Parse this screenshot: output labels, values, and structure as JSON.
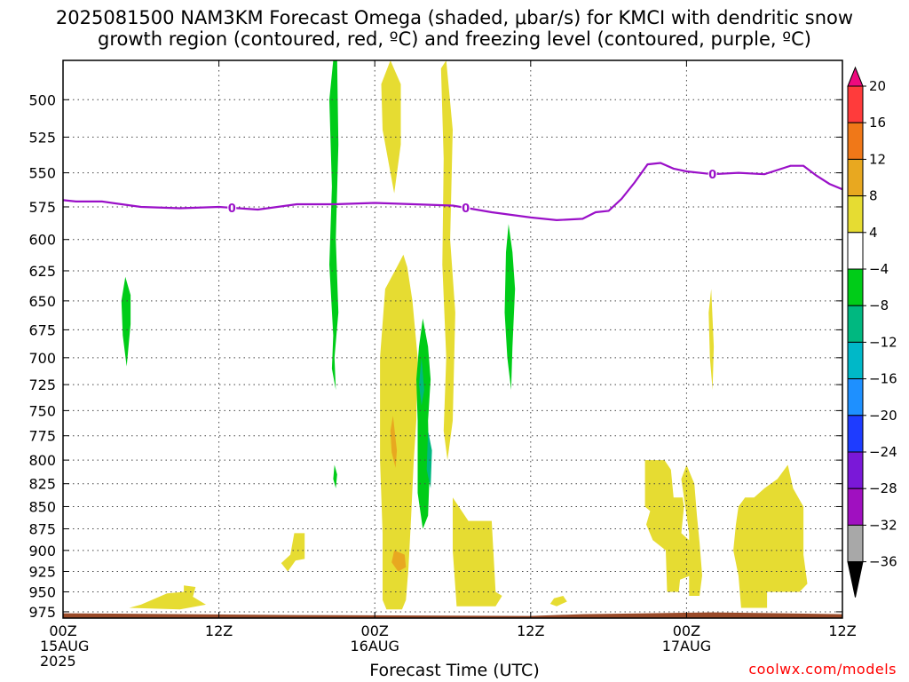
{
  "title_line1": "2025081500 NAM3KM Forecast Omega (shaded, μbar/s) for KMCI with dendritic snow",
  "title_line2": "growth region (contoured, red, ºC) and freezing level (contoured, purple, ºC)",
  "xlabel": "Forecast Time (UTC)",
  "credit": "coolwx.com/models",
  "chart_data": {
    "type": "heatmap",
    "title": "2025081500 NAM3KM Forecast Omega (shaded, μbar/s) for KMCI with dendritic snow growth region (contoured, red, ºC) and freezing level (contoured, purple, ºC)",
    "xlabel": "Forecast Time (UTC)",
    "ylabel": "",
    "x_range_hours": [
      0,
      60
    ],
    "y_range_hPa": [
      983,
      475
    ],
    "y_ticks": [
      500,
      525,
      550,
      575,
      600,
      625,
      650,
      675,
      700,
      725,
      750,
      775,
      800,
      825,
      850,
      875,
      900,
      925,
      950,
      975
    ],
    "x_ticks": [
      {
        "h": 0,
        "lines": [
          "00Z",
          "15AUG",
          "2025"
        ]
      },
      {
        "h": 12,
        "lines": [
          "12Z"
        ]
      },
      {
        "h": 24,
        "lines": [
          "00Z",
          "16AUG"
        ]
      },
      {
        "h": 36,
        "lines": [
          "12Z"
        ]
      },
      {
        "h": 48,
        "lines": [
          "00Z",
          "17AUG"
        ]
      },
      {
        "h": 60,
        "lines": [
          "12Z"
        ]
      }
    ],
    "grid": true,
    "colorbar": {
      "labels": [
        20,
        16,
        12,
        8,
        4,
        -4,
        -8,
        -12,
        -16,
        -20,
        -24,
        -28,
        -32,
        -36
      ],
      "colors": [
        "#ee0a7e",
        "#ff3b3b",
        "#f07818",
        "#e8a820",
        "#e6dc32",
        "#ffffff",
        "#00cc18",
        "#00b880",
        "#00b8c8",
        "#1e90ff",
        "#1e3cff",
        "#7a18d8",
        "#a010c0",
        "#a8a8a8",
        "#000000"
      ]
    },
    "freezing_level": {
      "label": "0",
      "color": "#9a10c8",
      "hours": [
        0,
        1,
        3,
        6,
        9,
        12,
        15,
        18,
        21,
        24,
        27,
        30,
        33,
        36,
        38,
        40,
        41,
        42,
        43,
        44,
        45,
        46,
        47,
        48,
        50,
        52,
        54,
        56,
        57,
        58,
        59,
        60
      ],
      "hPa": [
        570,
        571,
        571,
        575,
        576,
        575,
        577,
        573,
        573,
        572,
        573,
        574,
        579,
        583,
        585,
        584,
        579,
        578,
        569,
        557,
        544,
        543,
        547,
        549,
        551,
        550,
        551,
        545,
        545,
        552,
        558,
        562
      ],
      "labels_at_hours": [
        13,
        31,
        50
      ]
    },
    "omega_regions": [
      {
        "level": "4 to 8",
        "color": "#e6dc32",
        "poly_h_hPa": [
          [
            25.2,
            475
          ],
          [
            26,
            490
          ],
          [
            26,
            530
          ],
          [
            25.5,
            565
          ],
          [
            24.6,
            520
          ],
          [
            24.5,
            490
          ]
        ]
      },
      {
        "level": "4 to 8",
        "color": "#e6dc32",
        "poly_h_hPa": [
          [
            29.5,
            475
          ],
          [
            30,
            520
          ],
          [
            29.8,
            600
          ],
          [
            30.2,
            660
          ],
          [
            30,
            760
          ],
          [
            29.6,
            800
          ],
          [
            29.3,
            770
          ],
          [
            29.5,
            700
          ],
          [
            29.2,
            620
          ],
          [
            29.3,
            540
          ],
          [
            29.1,
            480
          ]
        ]
      },
      {
        "level": "4 to 8",
        "color": "#e6dc32",
        "poly_h_hPa": [
          [
            26.5,
            622
          ],
          [
            26.9,
            650
          ],
          [
            27.3,
            700
          ],
          [
            27.2,
            760
          ],
          [
            27.0,
            800
          ],
          [
            26.8,
            860
          ],
          [
            26.6,
            920
          ],
          [
            26.4,
            960
          ],
          [
            26.1,
            972
          ],
          [
            24.9,
            972
          ],
          [
            24.6,
            960
          ],
          [
            24.6,
            880
          ],
          [
            24.4,
            800
          ],
          [
            24.4,
            700
          ],
          [
            24.8,
            640
          ],
          [
            25.7,
            622
          ],
          [
            26.2,
            612
          ]
        ]
      },
      {
        "level": "4 to 8",
        "color": "#e6dc32",
        "poly_h_hPa": [
          [
            30.0,
            840
          ],
          [
            31.2,
            866
          ],
          [
            33.0,
            866
          ],
          [
            33.3,
            950
          ],
          [
            33.8,
            955
          ],
          [
            33.3,
            968
          ],
          [
            30.3,
            968
          ],
          [
            30.0,
            900
          ]
        ]
      },
      {
        "level": "4 to 8",
        "color": "#e6dc32",
        "poly_h_hPa": [
          [
            6.0,
            966
          ],
          [
            8.0,
            952
          ],
          [
            9.3,
            950
          ],
          [
            9.3,
            942
          ],
          [
            10.2,
            944
          ],
          [
            10.0,
            956
          ],
          [
            11.0,
            966
          ],
          [
            9.0,
            972
          ],
          [
            5.1,
            970
          ]
        ]
      },
      {
        "level": "4 to 8",
        "color": "#e6dc32",
        "poly_h_hPa": [
          [
            17.8,
            880
          ],
          [
            18.6,
            880
          ],
          [
            18.6,
            910
          ],
          [
            17.9,
            912
          ],
          [
            17.3,
            925
          ],
          [
            16.8,
            915
          ],
          [
            17.5,
            905
          ]
        ]
      },
      {
        "level": "4 to 8",
        "color": "#e6dc32",
        "poly_h_hPa": [
          [
            37.8,
            958
          ],
          [
            38.5,
            955
          ],
          [
            38.8,
            962
          ],
          [
            38.0,
            968
          ],
          [
            37.5,
            965
          ]
        ]
      },
      {
        "level": "4 to 8",
        "color": "#e6dc32",
        "poly_h_hPa": [
          [
            44.8,
            800
          ],
          [
            46.3,
            800
          ],
          [
            46.8,
            810
          ],
          [
            47.0,
            840
          ],
          [
            47.7,
            840
          ],
          [
            47.8,
            850
          ],
          [
            47.6,
            880
          ],
          [
            48.2,
            888
          ],
          [
            48.3,
            930
          ],
          [
            47.5,
            935
          ],
          [
            47.4,
            950
          ],
          [
            46.5,
            950
          ],
          [
            46.4,
            900
          ],
          [
            45.4,
            888
          ],
          [
            44.9,
            870
          ],
          [
            45.2,
            855
          ],
          [
            44.8,
            850
          ]
        ]
      },
      {
        "level": "4 to 8",
        "color": "#e6dc32",
        "poly_h_hPa": [
          [
            47.6,
            820
          ],
          [
            48.0,
            805
          ],
          [
            48.6,
            825
          ],
          [
            48.8,
            860
          ],
          [
            49.0,
            890
          ],
          [
            49.2,
            930
          ],
          [
            49.0,
            955
          ],
          [
            48.2,
            955
          ],
          [
            48.2,
            880
          ]
        ]
      },
      {
        "level": "4 to 8",
        "color": "#e6dc32",
        "poly_h_hPa": [
          [
            52.0,
            850
          ],
          [
            52.5,
            840
          ],
          [
            53.2,
            840
          ],
          [
            54.0,
            830
          ],
          [
            55.0,
            820
          ],
          [
            55.8,
            805
          ],
          [
            56.2,
            830
          ],
          [
            57.0,
            850
          ],
          [
            57.0,
            905
          ],
          [
            57.3,
            940
          ],
          [
            56.7,
            950
          ],
          [
            54.2,
            950
          ],
          [
            54.2,
            970
          ],
          [
            52.2,
            970
          ],
          [
            52.0,
            930
          ],
          [
            51.6,
            900
          ],
          [
            51.8,
            870
          ]
        ]
      },
      {
        "level": "4 to 8",
        "color": "#e6dc32",
        "poly_h_hPa": [
          [
            49.9,
            640
          ],
          [
            50.1,
            690
          ],
          [
            50.0,
            730
          ],
          [
            49.8,
            700
          ],
          [
            49.7,
            660
          ]
        ]
      },
      {
        "level": "8 to 12",
        "color": "#e8a820",
        "poly_h_hPa": [
          [
            25.4,
            755
          ],
          [
            25.7,
            790
          ],
          [
            25.6,
            808
          ],
          [
            25.3,
            792
          ],
          [
            25.2,
            770
          ]
        ]
      },
      {
        "level": "8 to 12",
        "color": "#e8a820",
        "poly_h_hPa": [
          [
            25.5,
            900
          ],
          [
            26.3,
            905
          ],
          [
            26.4,
            920
          ],
          [
            25.8,
            925
          ],
          [
            25.3,
            914
          ]
        ]
      },
      {
        "level": "-4 to -8",
        "color": "#00cc18",
        "poly_h_hPa": [
          [
            20.8,
            475
          ],
          [
            21.1,
            475
          ],
          [
            21.2,
            530
          ],
          [
            21.0,
            600
          ],
          [
            21.2,
            660
          ],
          [
            20.9,
            700
          ],
          [
            21.0,
            730
          ],
          [
            20.7,
            710
          ],
          [
            20.8,
            680
          ],
          [
            20.5,
            620
          ],
          [
            20.7,
            560
          ],
          [
            20.5,
            500
          ]
        ]
      },
      {
        "level": "-4 to -8",
        "color": "#00cc18",
        "poly_h_hPa": [
          [
            20.9,
            805
          ],
          [
            21.1,
            815
          ],
          [
            21.0,
            830
          ],
          [
            20.8,
            820
          ]
        ]
      },
      {
        "level": "-4 to -8",
        "color": "#00cc18",
        "poly_h_hPa": [
          [
            4.8,
            630
          ],
          [
            5.2,
            645
          ],
          [
            5.2,
            670
          ],
          [
            4.9,
            708
          ],
          [
            4.6,
            680
          ],
          [
            4.5,
            650
          ]
        ]
      },
      {
        "level": "-4 to -8",
        "color": "#00cc18",
        "poly_h_hPa": [
          [
            27.7,
            665
          ],
          [
            28.1,
            690
          ],
          [
            28.3,
            720
          ],
          [
            28.1,
            760
          ],
          [
            28.2,
            820
          ],
          [
            28.1,
            860
          ],
          [
            27.7,
            875
          ],
          [
            27.3,
            835
          ],
          [
            27.3,
            760
          ],
          [
            27.2,
            720
          ],
          [
            27.4,
            690
          ]
        ]
      },
      {
        "level": "-4 to -8",
        "color": "#00cc18",
        "poly_h_hPa": [
          [
            34.3,
            588
          ],
          [
            34.6,
            610
          ],
          [
            34.8,
            640
          ],
          [
            34.6,
            690
          ],
          [
            34.5,
            730
          ],
          [
            34.2,
            700
          ],
          [
            34.0,
            660
          ],
          [
            34.1,
            610
          ]
        ]
      },
      {
        "level": "-8 to -12",
        "color": "#00b880",
        "poly_h_hPa": [
          [
            28.1,
            770
          ],
          [
            28.4,
            790
          ],
          [
            28.3,
            830
          ],
          [
            28.0,
            810
          ]
        ]
      },
      {
        "level": "-8 to -12",
        "color": "#00b880",
        "poly_h_hPa": [
          [
            27.6,
            700
          ],
          [
            27.8,
            730
          ],
          [
            27.6,
            745
          ],
          [
            27.4,
            725
          ]
        ]
      }
    ],
    "surface": {
      "color": "#9a4a28",
      "top_hPa": 978,
      "bottom_hPa": 983
    }
  }
}
